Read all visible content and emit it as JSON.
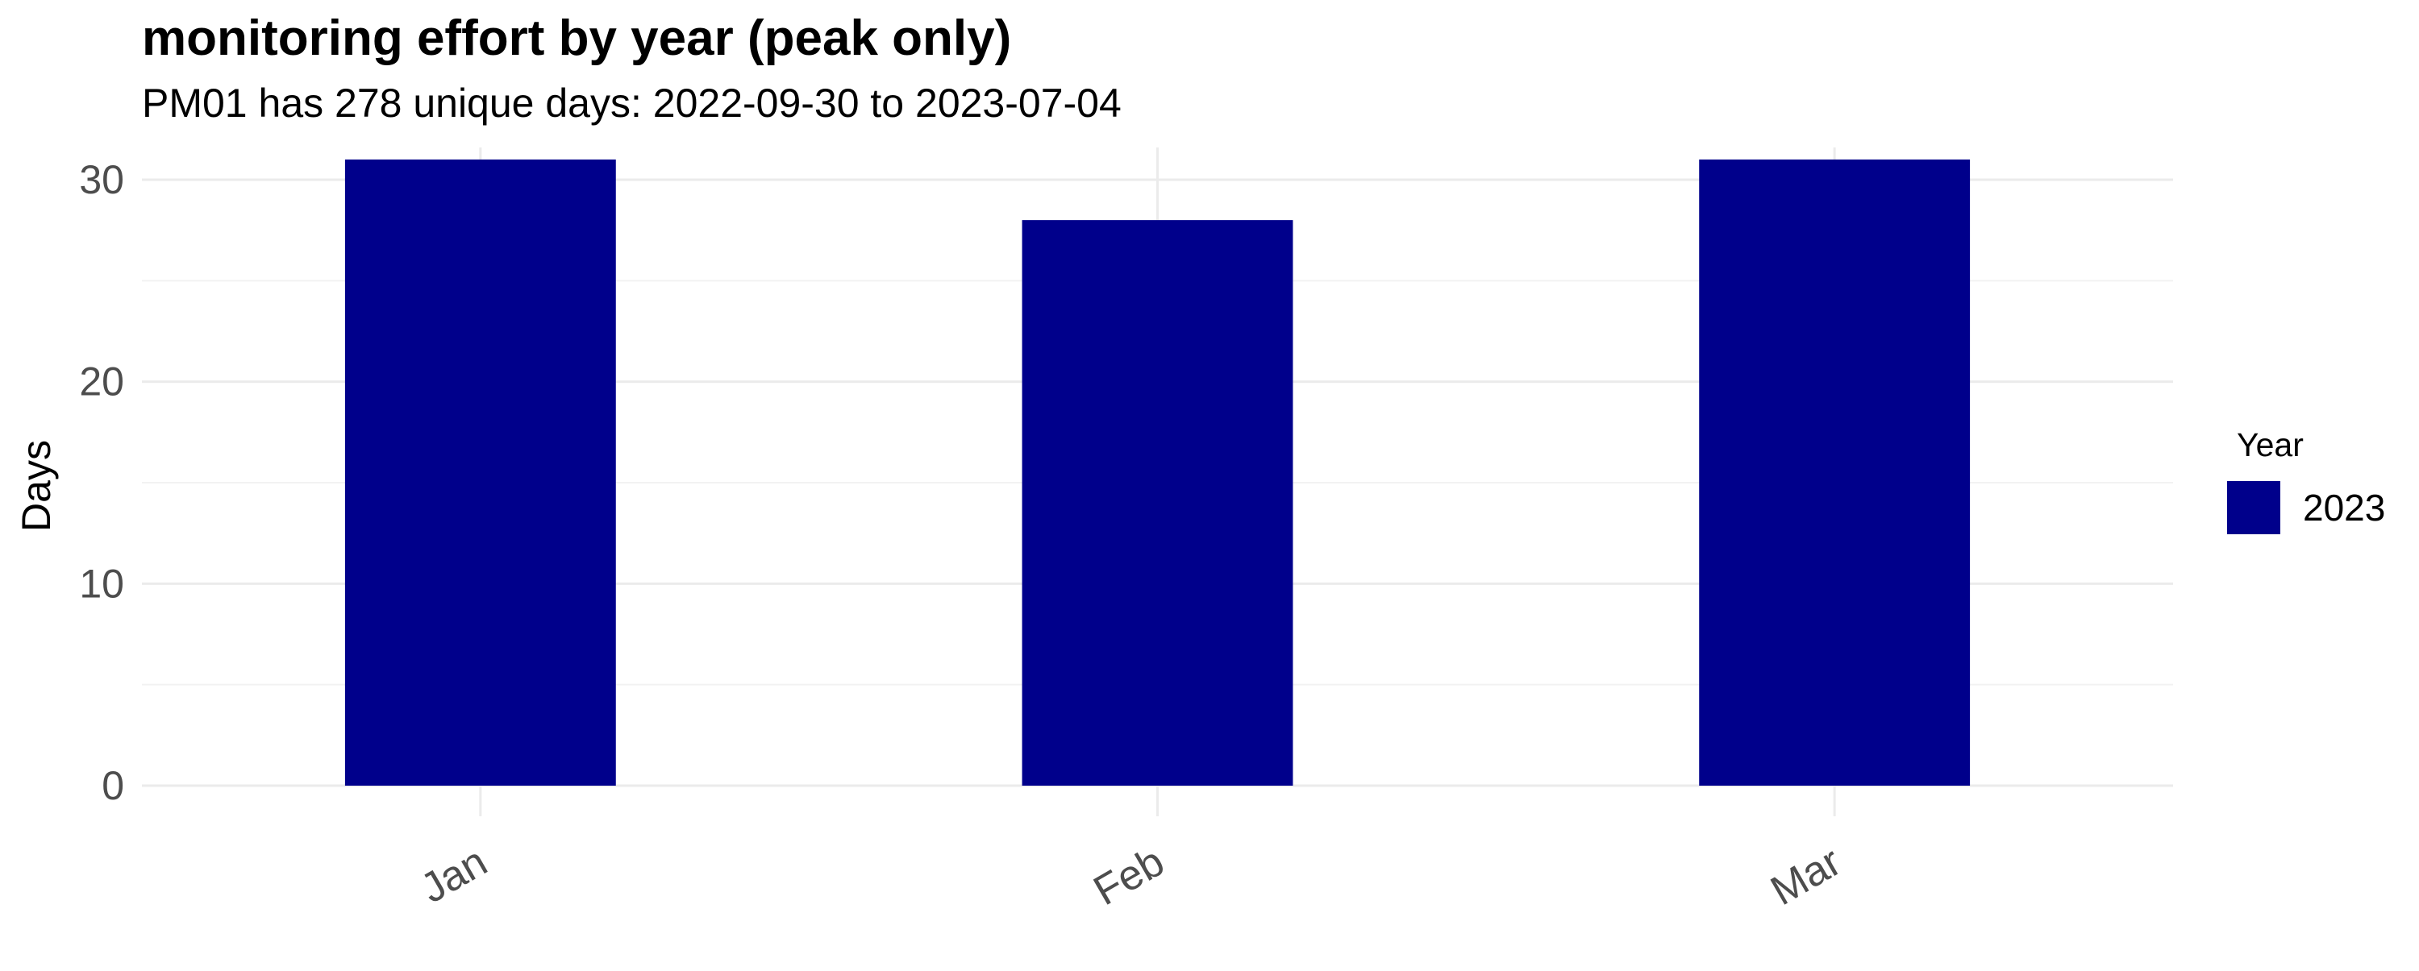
{
  "chart_data": {
    "type": "bar",
    "title": "monitoring effort by year (peak only)",
    "subtitle": "PM01 has 278 unique days: 2022-09-30 to 2023-07-04",
    "xlabel": "",
    "ylabel": "Days",
    "categories": [
      "Jan",
      "Feb",
      "Mar"
    ],
    "series": [
      {
        "name": "2023",
        "color": "#00008B",
        "values": [
          31,
          28,
          31
        ]
      }
    ],
    "yticks": [
      0,
      10,
      20,
      30
    ],
    "ylim": [
      0,
      32.5
    ],
    "grid": true,
    "legend": {
      "title": "Year",
      "position": "right",
      "entries": [
        "2023"
      ]
    }
  }
}
